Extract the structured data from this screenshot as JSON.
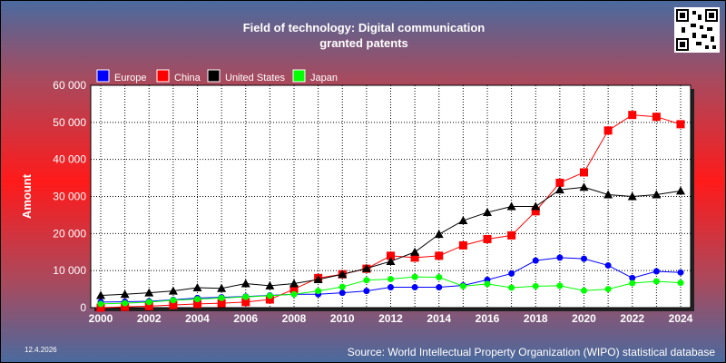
{
  "title_line1": "Field of technology: Digital communication",
  "title_line2": "granted patents",
  "source": "Source: World Intellectual Property Organization (WIPO) statistical database",
  "date": "12.4.2026",
  "colors": {
    "europe": "#0000ff",
    "china": "#ff0000",
    "us": "#000000",
    "japan": "#00ff00"
  },
  "chart_data": {
    "type": "line",
    "ylabel": "Amount",
    "ylim": [
      0,
      60000
    ],
    "yticks": [
      "0",
      "10 000",
      "20 000",
      "30 000",
      "40 000",
      "50 000",
      "60 000"
    ],
    "xlim": [
      2000,
      2024
    ],
    "xticks": [
      "2000",
      "2002",
      "2004",
      "2006",
      "2008",
      "2010",
      "2012",
      "2014",
      "2016",
      "2018",
      "2020",
      "2022",
      "2024"
    ],
    "grid": true,
    "legend": "top-left",
    "x": [
      2000,
      2001,
      2002,
      2003,
      2004,
      2005,
      2006,
      2007,
      2008,
      2009,
      2010,
      2011,
      2012,
      2013,
      2014,
      2015,
      2016,
      2017,
      2018,
      2019,
      2020,
      2021,
      2022,
      2023,
      2024
    ],
    "series": [
      {
        "name": "Europe",
        "marker": "circle",
        "values": [
          1500,
          1600,
          1700,
          2100,
          2600,
          2800,
          3000,
          3300,
          3600,
          3600,
          4000,
          4500,
          5500,
          5500,
          5500,
          6000,
          7500,
          9200,
          12700,
          13500,
          13200,
          11400,
          8000,
          9800,
          9500
        ]
      },
      {
        "name": "China",
        "marker": "square",
        "values": [
          0,
          200,
          400,
          700,
          1000,
          1200,
          1500,
          2200,
          5000,
          8000,
          9000,
          10500,
          14000,
          13500,
          14000,
          16800,
          18500,
          19500,
          26000,
          33700,
          36500,
          47800,
          52000,
          51500,
          49500
        ]
      },
      {
        "name": "United States",
        "marker": "triangle",
        "values": [
          3300,
          3600,
          4000,
          4500,
          5400,
          5200,
          6500,
          5900,
          6500,
          7600,
          9000,
          10600,
          12500,
          15000,
          19800,
          23500,
          25700,
          27300,
          27300,
          31800,
          32500,
          30500,
          30000,
          30500,
          31500
        ]
      },
      {
        "name": "Japan",
        "marker": "circle",
        "values": [
          1000,
          1200,
          1500,
          2000,
          2300,
          2600,
          2900,
          3200,
          3600,
          4500,
          5600,
          7400,
          7700,
          8300,
          8200,
          5800,
          6400,
          5400,
          5800,
          5900,
          4600,
          5000,
          6600,
          7100,
          6700
        ]
      }
    ]
  }
}
